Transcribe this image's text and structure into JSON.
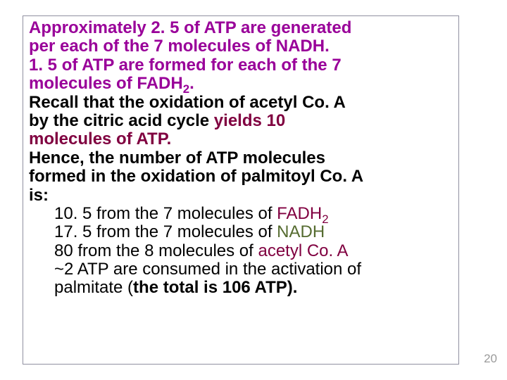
{
  "slide": {
    "p1": {
      "a": "Approximately 2. 5 of ATP are generated",
      "b": "per each of the 7 molecules of NADH."
    },
    "p2": {
      "a": "1. 5 of ATP are formed for each of the 7",
      "b": "molecules of FADH",
      "sub": "2",
      "c": "."
    },
    "p3": {
      "a": "Recall that the oxidation of acetyl Co. A",
      "b": "by the citric acid cycle ",
      "c": "yields 10",
      "d": "molecules of ATP."
    },
    "p4": {
      "a": "Hence, the number of ATP molecules",
      "b": "formed in the oxidation of palmitoyl Co. A",
      "c": "is:"
    },
    "items": {
      "i1": {
        "a": "10. 5",
        "b": " from the 7 molecules of ",
        "c": "FADH",
        "s": "2"
      },
      "i2": {
        "a": "17. 5",
        "b": " from the 7 molecules of ",
        "c": "NADH"
      },
      "i3": {
        "a": "80",
        "b": " from the 8 molecules of ",
        "c": "acetyl Co. A"
      },
      "i4": {
        "a": "~2",
        "b": " ATP are consumed in the activation of"
      },
      "i5": {
        "a": "palmitate (",
        "b": "the total is 106 ATP).",
        "c": ""
      }
    }
  },
  "page_number": "20"
}
